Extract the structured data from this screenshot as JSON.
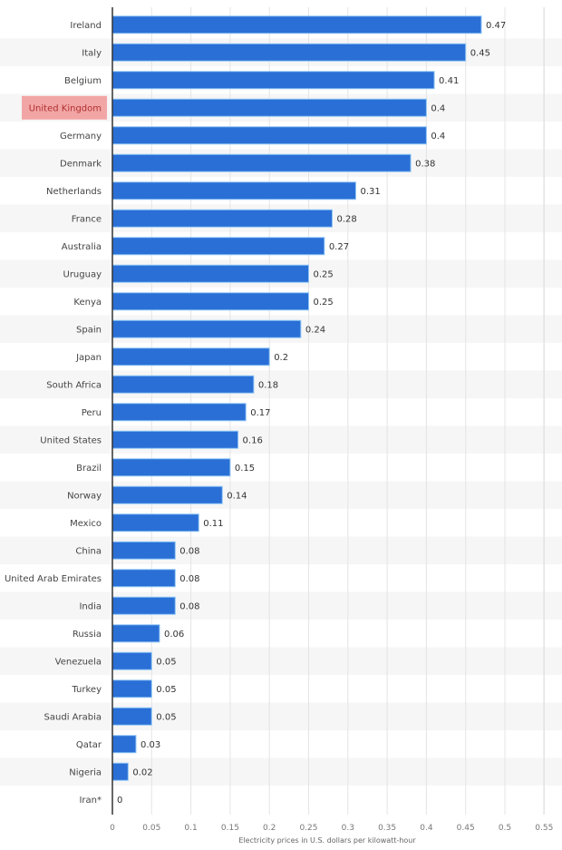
{
  "chart_data": {
    "type": "bar",
    "orientation": "horizontal",
    "title": "",
    "xlabel": "Electricity prices in U.S. dollars per kilowatt-hour",
    "ylabel": "",
    "xlim": [
      0,
      0.55
    ],
    "xticks": [
      "0",
      "0.05",
      "0.1",
      "0.15",
      "0.2",
      "0.25",
      "0.3",
      "0.35",
      "0.4",
      "0.45",
      "0.5",
      "0.55"
    ],
    "grid": true,
    "highlighted_category": "United Kingdom",
    "categories": [
      "Ireland",
      "Italy",
      "Belgium",
      "United Kingdom",
      "Germany",
      "Denmark",
      "Netherlands",
      "France",
      "Australia",
      "Uruguay",
      "Kenya",
      "Spain",
      "Japan",
      "South Africa",
      "Peru",
      "United States",
      "Brazil",
      "Norway",
      "Mexico",
      "China",
      "United Arab Emirates",
      "India",
      "Russia",
      "Venezuela",
      "Turkey",
      "Saudi Arabia",
      "Qatar",
      "Nigeria",
      "Iran*"
    ],
    "values": [
      0.47,
      0.45,
      0.41,
      0.4,
      0.4,
      0.38,
      0.31,
      0.28,
      0.27,
      0.25,
      0.25,
      0.24,
      0.2,
      0.18,
      0.17,
      0.16,
      0.15,
      0.14,
      0.11,
      0.08,
      0.08,
      0.08,
      0.06,
      0.05,
      0.05,
      0.05,
      0.03,
      0.02,
      0
    ],
    "colors": {
      "bar": "#2a6fd6",
      "bar_edge": "#8ec5f5",
      "highlight": "#f2a5a5",
      "highlight_text": "#b03030",
      "stripe": "#f6f6f6",
      "grid": "#e4e4e4"
    }
  }
}
